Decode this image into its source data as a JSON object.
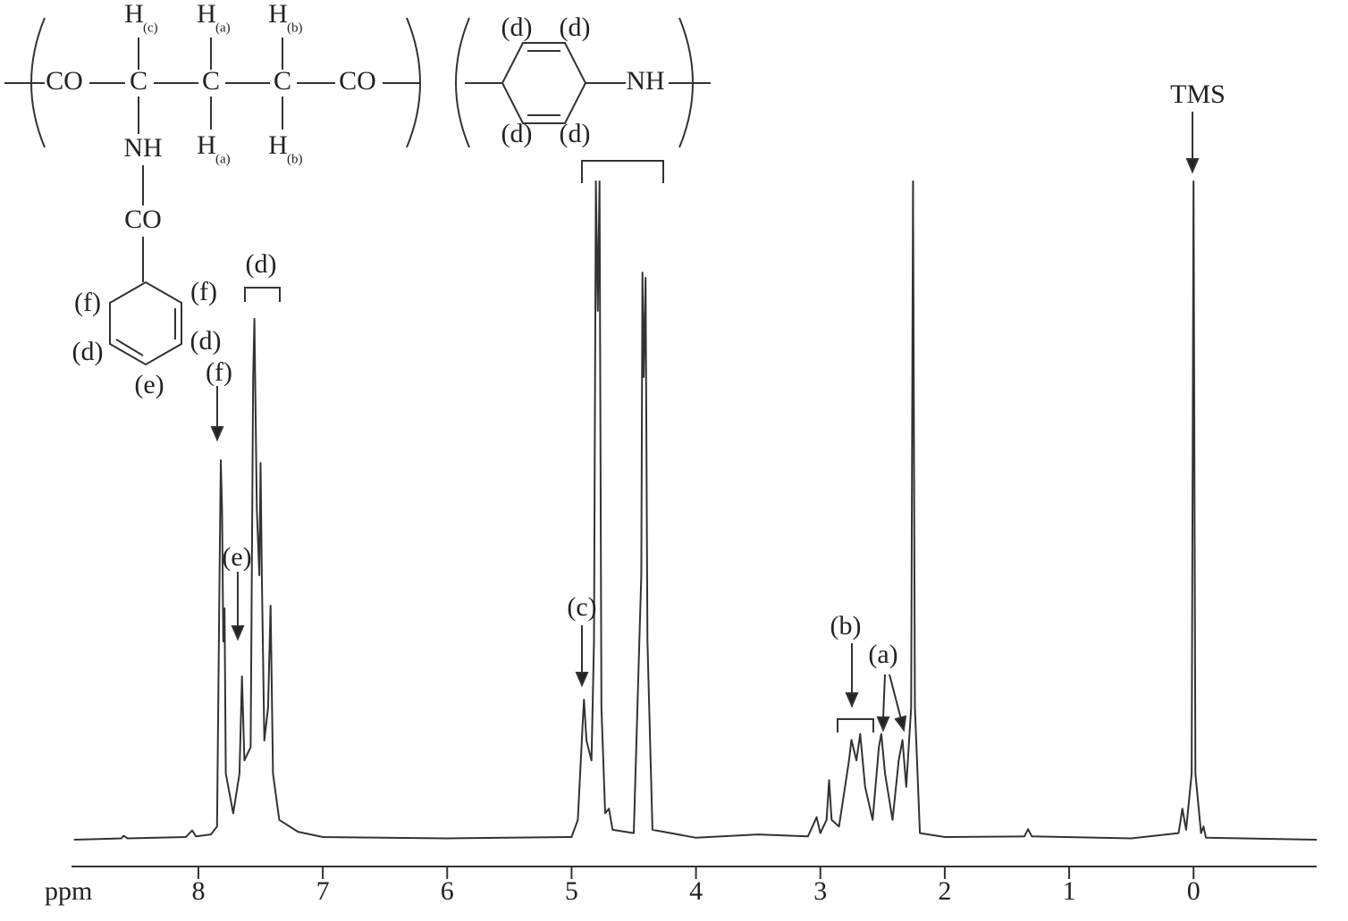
{
  "chart_data": {
    "type": "line",
    "x_label": "ppm",
    "x": [
      9.0,
      8.62,
      8.6,
      8.57,
      8.1,
      8.05,
      8.02,
      7.9,
      7.85,
      7.83,
      7.82,
      7.81,
      7.8,
      7.79,
      7.78,
      7.72,
      7.67,
      7.65,
      7.63,
      7.58,
      7.56,
      7.55,
      7.53,
      7.51,
      7.5,
      7.49,
      7.47,
      7.44,
      7.42,
      7.4,
      7.35,
      7.2,
      7.0,
      6.0,
      5.0,
      4.95,
      4.91,
      4.9,
      4.88,
      4.86,
      4.84,
      4.82,
      4.805,
      4.79,
      4.775,
      4.76,
      4.73,
      4.7,
      4.67,
      4.5,
      4.44,
      4.43,
      4.42,
      4.405,
      4.39,
      4.35,
      4.0,
      3.5,
      3.1,
      3.03,
      3.0,
      2.95,
      2.93,
      2.91,
      2.85,
      2.77,
      2.75,
      2.71,
      2.68,
      2.64,
      2.58,
      2.53,
      2.51,
      2.48,
      2.42,
      2.37,
      2.34,
      2.31,
      2.27,
      2.255,
      2.24,
      2.2,
      2.0,
      1.36,
      1.33,
      1.3,
      0.5,
      0.12,
      0.09,
      0.06,
      0.015,
      0.0,
      -0.015,
      -0.06,
      -0.08,
      -0.1,
      -0.99
    ],
    "series": [
      {
        "color": "#333333",
        "values": [
          0,
          0.2,
          0.6,
          0.2,
          0.4,
          1.4,
          0.5,
          0.8,
          2,
          40,
          57.4,
          50,
          30,
          35,
          10,
          4,
          10,
          24.7,
          12,
          14,
          70,
          78.8,
          50,
          40,
          57,
          40,
          15,
          20,
          35.4,
          10,
          3,
          1.2,
          0.4,
          0.2,
          0.4,
          3,
          18,
          21.2,
          15,
          13.5,
          12,
          30,
          99.6,
          80,
          99.6,
          20,
          4,
          4.7,
          1.5,
          1,
          40,
          85.8,
          70,
          85,
          30,
          1.5,
          0.3,
          0.8,
          0.5,
          3.4,
          1,
          3,
          9,
          3,
          2,
          12,
          15.1,
          12,
          16,
          8,
          3,
          14,
          16,
          10,
          3,
          12,
          15.1,
          8,
          20,
          99.6,
          20,
          1,
          0.4,
          0.5,
          1.6,
          0.5,
          0.2,
          1,
          4.7,
          1.5,
          10,
          99.6,
          10,
          1,
          2,
          0.3,
          0
        ]
      }
    ],
    "xlim": [
      9.02,
      -0.99
    ],
    "ylim": [
      0,
      100
    ],
    "xticks": [
      8,
      7,
      6,
      5,
      4,
      3,
      2,
      1,
      0
    ],
    "annotations": [
      "(d)",
      "(f)",
      "(e)",
      "(c)",
      "(b)",
      "(a)",
      "TMS"
    ]
  },
  "structure": {
    "labels": [
      {
        "text": "CO"
      },
      {
        "text": "C"
      },
      {
        "text": "C"
      },
      {
        "text": "C"
      },
      {
        "text": "CO"
      },
      {
        "text": "H",
        "sub": "(c)"
      },
      {
        "text": "H",
        "sub": "(a)"
      },
      {
        "text": "H",
        "sub": "(b)"
      },
      {
        "text": "H",
        "sub": "(a)"
      },
      {
        "text": "H",
        "sub": "(b)"
      },
      {
        "text": "NH"
      },
      {
        "text": "CO"
      },
      {
        "text": "(f)"
      },
      {
        "text": "(f)"
      },
      {
        "text": "(d)"
      },
      {
        "text": "(d)"
      },
      {
        "text": "(e)"
      },
      {
        "text": "(d)"
      },
      {
        "text": "(d)"
      },
      {
        "text": "NH"
      },
      {
        "text": "(d)"
      },
      {
        "text": "(d)"
      }
    ]
  }
}
